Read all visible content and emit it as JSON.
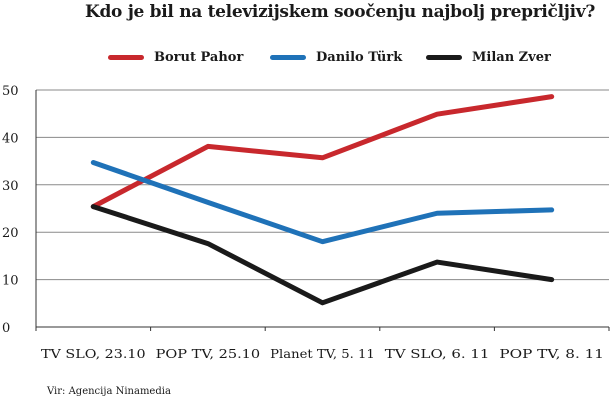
{
  "chart_data": {
    "type": "line",
    "title": "Kdo je bil na televizijskem soočenju najbolj prepričljiv?",
    "categories": [
      "TV SLO, 23.10",
      "POP TV, 25.10",
      "Planet TV, 5. 11",
      "TV SLO, 6. 11",
      "POP TV, 8. 11"
    ],
    "series": [
      {
        "name": "Borut Pahor",
        "color": "#c8282d",
        "values": [
          25.4,
          38.1,
          35.7,
          44.9,
          48.6
        ]
      },
      {
        "name": "Danilo Türk",
        "color": "#1f72b8",
        "values": [
          34.7,
          26.3,
          18.0,
          24.0,
          24.7
        ]
      },
      {
        "name": "Milan Zver",
        "color": "#1a1a1a",
        "values": [
          25.4,
          17.6,
          5.1,
          13.7,
          10.0
        ]
      }
    ],
    "yticks": [
      "0",
      "10",
      "20",
      "30",
      "40",
      "50"
    ],
    "ylim": [
      0,
      50
    ],
    "xlabel": "",
    "ylabel": "",
    "grid": true,
    "legend_position": "top"
  },
  "source": "Vir: Agencija Ninamedia"
}
